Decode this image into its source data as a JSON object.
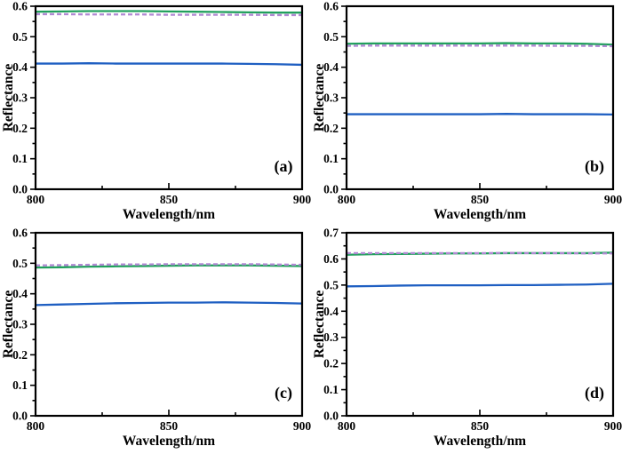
{
  "figure": {
    "background": "#ffffff",
    "axis_color": "#000000",
    "series_colors": {
      "solid_green": "#21a05d",
      "dashed_purple": "#b189d3",
      "solid_blue": "#1f5fc2"
    }
  },
  "chart_data": [
    {
      "type": "line",
      "panel_label": "(a)",
      "xlabel": "Wavelength/nm",
      "ylabel": "Reflectance",
      "xlim": [
        800,
        900
      ],
      "ylim": [
        0.0,
        0.6
      ],
      "x_major_ticks": [
        800,
        850,
        900
      ],
      "x_minor_ticks": [
        825,
        875
      ],
      "y_major_step": 0.1,
      "y_minor_step": 0.05,
      "grid": false,
      "legend": "none",
      "x": [
        800,
        810,
        820,
        830,
        840,
        850,
        860,
        870,
        880,
        890,
        900
      ],
      "series": [
        {
          "name": "blue-solid",
          "color": "#1f5fc2",
          "style": "solid",
          "values": [
            0.412,
            0.412,
            0.413,
            0.412,
            0.412,
            0.412,
            0.412,
            0.412,
            0.411,
            0.41,
            0.408
          ]
        },
        {
          "name": "green-solid",
          "color": "#21a05d",
          "style": "solid",
          "values": [
            0.582,
            0.583,
            0.584,
            0.584,
            0.584,
            0.583,
            0.582,
            0.581,
            0.58,
            0.579,
            0.579
          ]
        },
        {
          "name": "purple-dashed",
          "color": "#b189d3",
          "style": "dashed",
          "values": [
            0.574,
            0.574,
            0.573,
            0.573,
            0.573,
            0.572,
            0.572,
            0.572,
            0.572,
            0.571,
            0.571
          ]
        }
      ]
    },
    {
      "type": "line",
      "panel_label": "(b)",
      "xlabel": "Wavelength/nm",
      "ylabel": "Reflectance",
      "xlim": [
        800,
        900
      ],
      "ylim": [
        0.0,
        0.6
      ],
      "x_major_ticks": [
        800,
        850,
        900
      ],
      "x_minor_ticks": [
        825,
        875
      ],
      "y_major_step": 0.1,
      "y_minor_step": 0.05,
      "grid": false,
      "legend": "none",
      "x": [
        800,
        810,
        820,
        830,
        840,
        850,
        860,
        870,
        880,
        890,
        900
      ],
      "series": [
        {
          "name": "blue-solid",
          "color": "#1f5fc2",
          "style": "solid",
          "values": [
            0.246,
            0.246,
            0.246,
            0.246,
            0.246,
            0.246,
            0.247,
            0.246,
            0.246,
            0.246,
            0.245
          ]
        },
        {
          "name": "green-solid",
          "color": "#21a05d",
          "style": "solid",
          "values": [
            0.477,
            0.478,
            0.478,
            0.478,
            0.478,
            0.478,
            0.479,
            0.478,
            0.478,
            0.477,
            0.474
          ]
        },
        {
          "name": "purple-dashed",
          "color": "#b189d3",
          "style": "dashed",
          "values": [
            0.47,
            0.471,
            0.471,
            0.471,
            0.471,
            0.471,
            0.471,
            0.471,
            0.47,
            0.47,
            0.469
          ]
        }
      ]
    },
    {
      "type": "line",
      "panel_label": "(c)",
      "xlabel": "Wavelength/nm",
      "ylabel": "Reflectance",
      "xlim": [
        800,
        900
      ],
      "ylim": [
        0.0,
        0.6
      ],
      "x_major_ticks": [
        800,
        850,
        900
      ],
      "x_minor_ticks": [
        825,
        875
      ],
      "y_major_step": 0.1,
      "y_minor_step": 0.05,
      "grid": false,
      "legend": "none",
      "x": [
        800,
        810,
        820,
        830,
        840,
        850,
        860,
        870,
        880,
        890,
        900
      ],
      "series": [
        {
          "name": "blue-solid",
          "color": "#1f5fc2",
          "style": "solid",
          "values": [
            0.363,
            0.365,
            0.367,
            0.369,
            0.37,
            0.371,
            0.371,
            0.372,
            0.371,
            0.37,
            0.368
          ]
        },
        {
          "name": "green-solid",
          "color": "#21a05d",
          "style": "solid",
          "values": [
            0.486,
            0.487,
            0.489,
            0.49,
            0.491,
            0.492,
            0.493,
            0.493,
            0.493,
            0.492,
            0.491
          ]
        },
        {
          "name": "purple-dashed",
          "color": "#b189d3",
          "style": "dashed",
          "values": [
            0.493,
            0.494,
            0.495,
            0.496,
            0.496,
            0.497,
            0.497,
            0.497,
            0.497,
            0.496,
            0.495
          ]
        }
      ]
    },
    {
      "type": "line",
      "panel_label": "(d)",
      "xlabel": "Wavelength/nm",
      "ylabel": "Reflectance",
      "xlim": [
        800,
        900
      ],
      "ylim": [
        0.0,
        0.7
      ],
      "x_major_ticks": [
        800,
        850,
        900
      ],
      "x_minor_ticks": [
        825,
        875
      ],
      "y_major_step": 0.1,
      "y_minor_step": 0.05,
      "grid": false,
      "legend": "none",
      "x": [
        800,
        810,
        820,
        830,
        840,
        850,
        860,
        870,
        880,
        890,
        900
      ],
      "series": [
        {
          "name": "blue-solid",
          "color": "#1f5fc2",
          "style": "solid",
          "values": [
            0.495,
            0.496,
            0.498,
            0.499,
            0.499,
            0.499,
            0.5,
            0.5,
            0.501,
            0.502,
            0.505
          ]
        },
        {
          "name": "green-solid",
          "color": "#21a05d",
          "style": "solid",
          "values": [
            0.616,
            0.618,
            0.619,
            0.62,
            0.621,
            0.621,
            0.622,
            0.622,
            0.622,
            0.622,
            0.624
          ]
        },
        {
          "name": "purple-dashed",
          "color": "#b189d3",
          "style": "dashed",
          "values": [
            0.622,
            0.622,
            0.622,
            0.622,
            0.622,
            0.622,
            0.623,
            0.622,
            0.622,
            0.621,
            0.621
          ]
        }
      ]
    }
  ]
}
